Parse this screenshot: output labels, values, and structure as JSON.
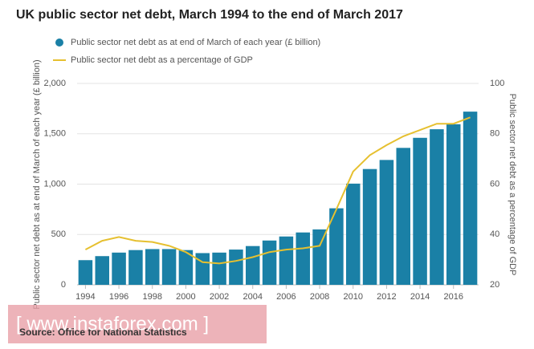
{
  "chart_data": {
    "type": "bar_line",
    "title": "UK public sector net debt, March 1994 to the end of March 2017",
    "ylabel": "Public sector net debt as at end of March of each year (£ billion)",
    "y2label": "Public sector net debt as a percentage of GDP",
    "source": "Source: Office for National Statistics",
    "watermark": "[ www.instaforex.com ]",
    "categories": [
      "1994",
      null,
      "1996",
      null,
      "1998",
      null,
      "2000",
      null,
      "2002",
      null,
      "2004",
      null,
      "2006",
      null,
      "2008",
      null,
      "2010",
      null,
      "2012",
      null,
      "2014",
      null,
      "2016",
      null
    ],
    "series": [
      {
        "name": "Public sector net debt as at end of March of each year (£ billion)",
        "color": "#1a80a6",
        "type": "bar",
        "values": [
          245,
          285,
          320,
          345,
          355,
          355,
          345,
          315,
          320,
          350,
          385,
          440,
          480,
          520,
          550,
          760,
          1005,
          1150,
          1240,
          1360,
          1460,
          1545,
          1595,
          1720
        ]
      },
      {
        "name": "Public sector net debt as a percentage of GDP",
        "color": "#e6c030",
        "type": "line",
        "axis": "y2",
        "values": [
          34,
          37.5,
          39,
          37.5,
          37,
          35.5,
          33,
          29,
          28.5,
          29.5,
          31,
          33,
          34,
          34.5,
          35.5,
          50,
          65,
          71.5,
          75.5,
          79,
          81.5,
          84,
          84,
          86.5
        ]
      }
    ],
    "ylim": [
      0,
      2000
    ],
    "yticks": [
      0,
      500,
      {
        "value": 1000,
        "label": "1,000"
      },
      {
        "value": 1500,
        "label": "1,500"
      },
      {
        "value": 2000,
        "label": "2,000"
      }
    ],
    "y2lim": [
      20,
      100
    ],
    "y2ticks": [
      20,
      40,
      60,
      80,
      100
    ],
    "grid": true
  }
}
